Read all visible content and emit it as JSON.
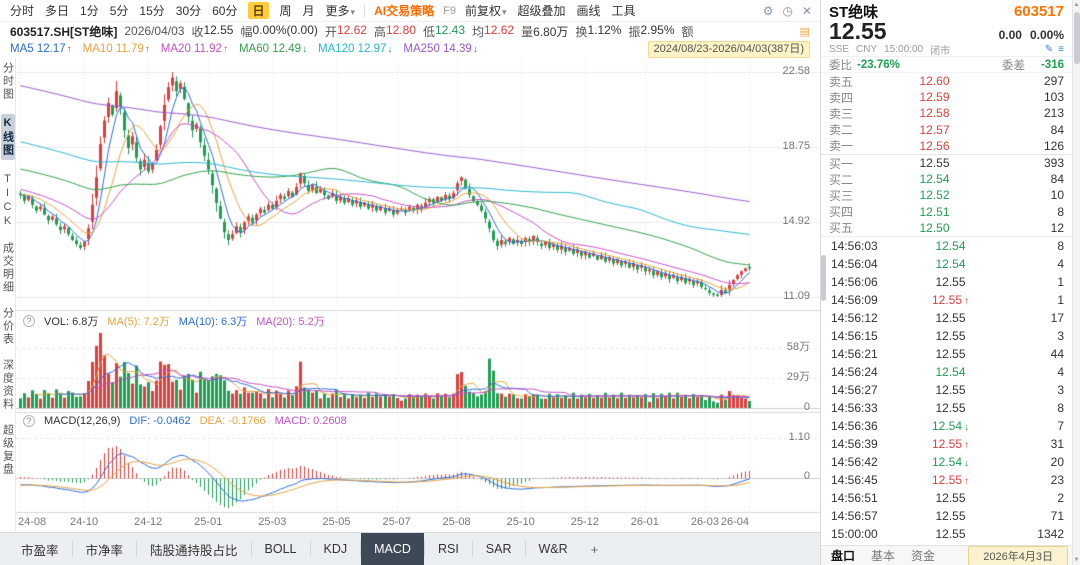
{
  "toolbar": {
    "periods": [
      "分时",
      "多日",
      "1分",
      "5分",
      "15分",
      "30分",
      "60分",
      "日",
      "周",
      "月",
      "更多"
    ],
    "active_period": "日",
    "ai_strategy": "AI交易策略",
    "fn_key": "F9",
    "menus": [
      "前复权",
      "超级叠加",
      "画线",
      "工具"
    ]
  },
  "quote_row": {
    "symbol": "603517.SH[ST绝味]",
    "date": "2026/04/03",
    "fields": [
      {
        "label": "收",
        "value": "12.55",
        "tone": "flat"
      },
      {
        "label": "幅",
        "value": "0.00%(0.00)",
        "tone": "flat"
      },
      {
        "label": "开",
        "value": "12.62",
        "tone": "up"
      },
      {
        "label": "高",
        "value": "12.80",
        "tone": "up"
      },
      {
        "label": "低",
        "value": "12.43",
        "tone": "down"
      },
      {
        "label": "均",
        "value": "12.62",
        "tone": "up"
      },
      {
        "label": "量",
        "value": "6.80万",
        "tone": "vol"
      },
      {
        "label": "换",
        "value": "1.12%",
        "tone": "plain"
      },
      {
        "label": "振",
        "value": "2.95%",
        "tone": "plain"
      },
      {
        "label": "额",
        "value": "",
        "tone": "plain"
      }
    ]
  },
  "ma_row": {
    "items": [
      {
        "label": "MA5",
        "value": "12.17",
        "dir": "up",
        "color": "#2b6cdf"
      },
      {
        "label": "MA10",
        "value": "11.79",
        "dir": "up",
        "color": "#e8a33d"
      },
      {
        "label": "MA20",
        "value": "11.92",
        "dir": "up",
        "color": "#c750c7"
      },
      {
        "label": "MA60",
        "value": "12.49",
        "dir": "down",
        "color": "#31a04a"
      },
      {
        "label": "MA120",
        "value": "12.97",
        "dir": "down",
        "color": "#27b6cc"
      },
      {
        "label": "MA250",
        "value": "14.39",
        "dir": "down",
        "color": "#9a55d6"
      }
    ],
    "date_range": "2024/08/23-2026/04/03(387日)"
  },
  "left_rail": {
    "items": [
      "分时图",
      "K线图",
      "TICK",
      "成交明细",
      "分价表",
      "深度资料",
      "超级复盘"
    ],
    "active_index": 1
  },
  "panes": {
    "volume_header": {
      "vol": "VOL: 6.8万",
      "ma5": "MA(5): 7.2万",
      "ma10": "MA(10): 6.3万",
      "ma20": "MA(20): 5.2万"
    },
    "macd_header": {
      "title": "MACD(12,26,9)",
      "dif": "DIF: -0.0462",
      "dea": "DEA: -0.1766",
      "macd": "MACD: 0.2608"
    }
  },
  "bottom_tabs": {
    "items": [
      "市盈率",
      "市净率",
      "陆股通持股占比",
      "BOLL",
      "KDJ",
      "MACD",
      "RSI",
      "SAR",
      "W&R"
    ],
    "active": "MACD"
  },
  "right_panel": {
    "name": "ST绝味",
    "code": "603517",
    "price": "12.55",
    "change": "0.00",
    "change_pct": "0.00%",
    "exchange": "SSE",
    "currency": "CNY",
    "time": "15:00:00",
    "status": "闭市",
    "weibi_label": "委比",
    "weibi": "-23.76%",
    "weicha_label": "委差",
    "weicha": "-316",
    "asks": [
      {
        "label": "卖五",
        "price": "12.60",
        "vol": "297"
      },
      {
        "label": "卖四",
        "price": "12.59",
        "vol": "103"
      },
      {
        "label": "卖三",
        "price": "12.58",
        "vol": "213"
      },
      {
        "label": "卖二",
        "price": "12.57",
        "vol": "84"
      },
      {
        "label": "卖一",
        "price": "12.56",
        "vol": "126"
      }
    ],
    "bids": [
      {
        "label": "买一",
        "price": "12.55",
        "vol": "393"
      },
      {
        "label": "买二",
        "price": "12.54",
        "vol": "84"
      },
      {
        "label": "买三",
        "price": "12.52",
        "vol": "10"
      },
      {
        "label": "买四",
        "price": "12.51",
        "vol": "8"
      },
      {
        "label": "买五",
        "price": "12.50",
        "vol": "12"
      }
    ],
    "ticks": [
      {
        "time": "14:56:03",
        "price": "12.54",
        "tone": "down",
        "arrow": "",
        "vol": "8"
      },
      {
        "time": "14:56:04",
        "price": "12.54",
        "tone": "down",
        "arrow": "",
        "vol": "4"
      },
      {
        "time": "14:56:06",
        "price": "12.55",
        "tone": "flat",
        "arrow": "",
        "vol": "1"
      },
      {
        "time": "14:56:09",
        "price": "12.55",
        "tone": "up",
        "arrow": "up",
        "vol": "1"
      },
      {
        "time": "14:56:12",
        "price": "12.55",
        "tone": "flat",
        "arrow": "",
        "vol": "17"
      },
      {
        "time": "14:56:15",
        "price": "12.55",
        "tone": "flat",
        "arrow": "",
        "vol": "3"
      },
      {
        "time": "14:56:21",
        "price": "12.55",
        "tone": "flat",
        "arrow": "",
        "vol": "44"
      },
      {
        "time": "14:56:24",
        "price": "12.54",
        "tone": "down",
        "arrow": "",
        "vol": "4"
      },
      {
        "time": "14:56:27",
        "price": "12.55",
        "tone": "flat",
        "arrow": "",
        "vol": "3"
      },
      {
        "time": "14:56:33",
        "price": "12.55",
        "tone": "flat",
        "arrow": "",
        "vol": "8"
      },
      {
        "time": "14:56:36",
        "price": "12.54",
        "tone": "down",
        "arrow": "down",
        "vol": "7"
      },
      {
        "time": "14:56:39",
        "price": "12.55",
        "tone": "up",
        "arrow": "up",
        "vol": "31"
      },
      {
        "time": "14:56:42",
        "price": "12.54",
        "tone": "down",
        "arrow": "down",
        "vol": "20"
      },
      {
        "time": "14:56:45",
        "price": "12.55",
        "tone": "up",
        "arrow": "up",
        "vol": "23"
      },
      {
        "time": "14:56:51",
        "price": "12.55",
        "tone": "flat",
        "arrow": "",
        "vol": "2"
      },
      {
        "time": "14:56:57",
        "price": "12.55",
        "tone": "flat",
        "arrow": "",
        "vol": "71"
      },
      {
        "time": "15:00:00",
        "price": "12.55",
        "tone": "flat",
        "arrow": "",
        "vol": "1342"
      }
    ],
    "tabs": [
      "盘口",
      "基本",
      "资金"
    ],
    "active_tab": "盘口",
    "date_chip": "2026年4月3日"
  },
  "chart_data": {
    "type": "candlestick",
    "title": "603517.SH ST绝味 日K",
    "prev_close": 12.55,
    "price_axis_labels": [
      "22.58",
      "18.75",
      "14.92",
      "11.09"
    ],
    "volume_axis_labels": [
      "58万",
      "29万",
      "0"
    ],
    "macd_axis_labels": [
      "1.10",
      "0"
    ],
    "x_labels": [
      "24-08",
      "24-10",
      "24-12",
      "25-01",
      "25-03",
      "25-05",
      "25-07",
      "25-08",
      "25-10",
      "25-12",
      "26-01",
      "26-03",
      "26-04"
    ],
    "x_label_indices": [
      0,
      16,
      32,
      47,
      63,
      79,
      94,
      109,
      125,
      141,
      156,
      171,
      182
    ],
    "last_candle": {
      "open": 12.62,
      "high": 12.8,
      "low": 12.43,
      "close": 12.55
    },
    "last_volume_wan": 6.8,
    "ma_values": {
      "MA5": 12.17,
      "MA10": 11.79,
      "MA20": 11.92,
      "MA60": 12.49,
      "MA120": 12.97,
      "MA250": 14.39
    },
    "macd_values": {
      "DIF": -0.0462,
      "DEA": -0.1766,
      "MACD": 0.2608
    },
    "closes": [
      16.3,
      16.0,
      16.2,
      15.8,
      15.5,
      15.7,
      15.3,
      15.0,
      15.2,
      14.8,
      14.5,
      14.7,
      14.3,
      14.0,
      13.8,
      13.6,
      13.9,
      14.6,
      15.8,
      17.2,
      18.9,
      20.1,
      21.0,
      20.4,
      21.6,
      20.8,
      19.6,
      18.7,
      19.3,
      18.2,
      17.6,
      18.1,
      17.5,
      17.9,
      18.6,
      19.8,
      20.9,
      21.8,
      22.3,
      21.6,
      22.0,
      21.2,
      20.3,
      19.6,
      19.9,
      19.0,
      18.3,
      17.6,
      16.8,
      15.9,
      15.1,
      14.4,
      14.0,
      14.3,
      14.7,
      14.4,
      14.9,
      15.2,
      14.9,
      15.3,
      15.6,
      15.4,
      15.8,
      15.6,
      16.0,
      16.3,
      16.1,
      16.5,
      16.2,
      16.7,
      17.4,
      16.9,
      16.5,
      16.8,
      16.4,
      16.6,
      16.3,
      16.1,
      16.4,
      16.0,
      16.2,
      15.9,
      16.1,
      15.8,
      16.0,
      15.7,
      15.9,
      15.6,
      15.8,
      15.5,
      15.7,
      15.4,
      15.6,
      15.3,
      15.5,
      15.6,
      15.4,
      15.7,
      15.5,
      15.8,
      15.6,
      15.9,
      16.1,
      15.9,
      16.2,
      16.0,
      16.3,
      16.1,
      16.4,
      16.9,
      17.2,
      16.7,
      16.3,
      16.0,
      15.8,
      15.5,
      15.1,
      14.6,
      14.0,
      13.7,
      14.0,
      13.8,
      14.1,
      13.8,
      14.0,
      13.8,
      14.1,
      13.9,
      14.2,
      13.9,
      13.7,
      13.9,
      13.6,
      13.8,
      13.5,
      13.7,
      13.4,
      13.6,
      13.3,
      13.5,
      13.2,
      13.4,
      13.1,
      13.3,
      13.0,
      13.2,
      12.9,
      13.1,
      12.8,
      13.0,
      12.7,
      12.9,
      12.6,
      12.8,
      12.5,
      12.7,
      12.4,
      12.5,
      12.2,
      12.4,
      12.1,
      12.3,
      12.0,
      12.2,
      11.9,
      12.1,
      11.8,
      12.0,
      11.7,
      11.9,
      11.6,
      11.5,
      11.3,
      11.2,
      11.15,
      11.45,
      11.3,
      11.7,
      11.95,
      12.2,
      12.4,
      12.55,
      12.55
    ]
  }
}
